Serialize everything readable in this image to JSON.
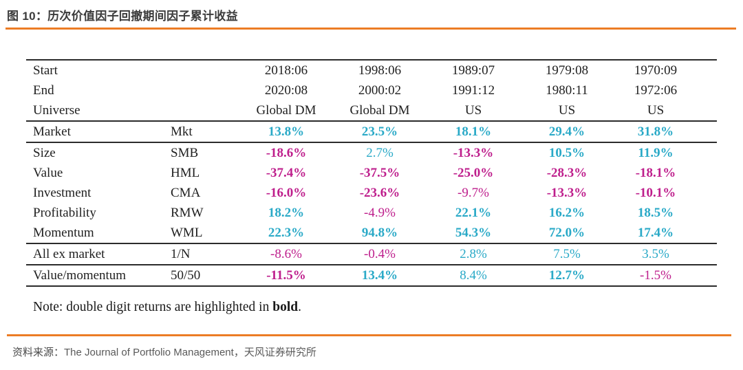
{
  "header": {
    "title": "图 10：历次价值因子回撤期间因子累计收益"
  },
  "colors": {
    "accent_orange": "#ec7c25",
    "positive_teal": "#29a9c7",
    "negative_magenta": "#be1e8c",
    "text_dark": "#1f1f1f"
  },
  "table": {
    "meta_rows": [
      {
        "label": "Start",
        "values": [
          "2018:06",
          "1998:06",
          "1989:07",
          "1979:08",
          "1970:09"
        ]
      },
      {
        "label": "End",
        "values": [
          "2020:08",
          "2000:02",
          "1991:12",
          "1980:11",
          "1972:06"
        ]
      },
      {
        "label": "Universe",
        "values": [
          "Global DM",
          "Global DM",
          "US",
          "US",
          "US"
        ]
      }
    ],
    "factor_rows": [
      {
        "name": "Market",
        "code": "Mkt",
        "sep_after": true,
        "cells": [
          {
            "t": "13.8%",
            "s": "pos",
            "b": true
          },
          {
            "t": "23.5%",
            "s": "pos",
            "b": true
          },
          {
            "t": "18.1%",
            "s": "pos",
            "b": true
          },
          {
            "t": "29.4%",
            "s": "pos",
            "b": true
          },
          {
            "t": "31.8%",
            "s": "pos",
            "b": true
          }
        ]
      },
      {
        "name": "Size",
        "code": "SMB",
        "sep_after": false,
        "cells": [
          {
            "t": "-18.6%",
            "s": "neg",
            "b": true
          },
          {
            "t": "2.7%",
            "s": "pos",
            "b": false
          },
          {
            "t": "-13.3%",
            "s": "neg",
            "b": true
          },
          {
            "t": "10.5%",
            "s": "pos",
            "b": true
          },
          {
            "t": "11.9%",
            "s": "pos",
            "b": true
          }
        ]
      },
      {
        "name": "Value",
        "code": "HML",
        "sep_after": false,
        "cells": [
          {
            "t": "-37.4%",
            "s": "neg",
            "b": true
          },
          {
            "t": "-37.5%",
            "s": "neg",
            "b": true
          },
          {
            "t": "-25.0%",
            "s": "neg",
            "b": true
          },
          {
            "t": "-28.3%",
            "s": "neg",
            "b": true
          },
          {
            "t": "-18.1%",
            "s": "neg",
            "b": true
          }
        ]
      },
      {
        "name": "Investment",
        "code": "CMA",
        "sep_after": false,
        "cells": [
          {
            "t": "-16.0%",
            "s": "neg",
            "b": true
          },
          {
            "t": "-23.6%",
            "s": "neg",
            "b": true
          },
          {
            "t": "-9.7%",
            "s": "neg",
            "b": false
          },
          {
            "t": "-13.3%",
            "s": "neg",
            "b": true
          },
          {
            "t": "-10.1%",
            "s": "neg",
            "b": true
          }
        ]
      },
      {
        "name": "Profitability",
        "code": "RMW",
        "sep_after": false,
        "cells": [
          {
            "t": "18.2%",
            "s": "pos",
            "b": true
          },
          {
            "t": "-4.9%",
            "s": "neg",
            "b": false
          },
          {
            "t": "22.1%",
            "s": "pos",
            "b": true
          },
          {
            "t": "16.2%",
            "s": "pos",
            "b": true
          },
          {
            "t": "18.5%",
            "s": "pos",
            "b": true
          }
        ]
      },
      {
        "name": "Momentum",
        "code": "WML",
        "sep_after": true,
        "cells": [
          {
            "t": "22.3%",
            "s": "pos",
            "b": true
          },
          {
            "t": "94.8%",
            "s": "pos",
            "b": true
          },
          {
            "t": "54.3%",
            "s": "pos",
            "b": true
          },
          {
            "t": "72.0%",
            "s": "pos",
            "b": true
          },
          {
            "t": "17.4%",
            "s": "pos",
            "b": true
          }
        ]
      },
      {
        "name": "All ex market",
        "code": "1/N",
        "sep_after": true,
        "cells": [
          {
            "t": "-8.6%",
            "s": "neg",
            "b": false
          },
          {
            "t": "-0.4%",
            "s": "neg",
            "b": false
          },
          {
            "t": "2.8%",
            "s": "pos",
            "b": false
          },
          {
            "t": "7.5%",
            "s": "pos",
            "b": false
          },
          {
            "t": "3.5%",
            "s": "pos",
            "b": false
          }
        ]
      },
      {
        "name": "Value/momentum",
        "code": "50/50",
        "sep_after": false,
        "cells": [
          {
            "t": "-11.5%",
            "s": "neg",
            "b": true
          },
          {
            "t": "13.4%",
            "s": "pos",
            "b": true
          },
          {
            "t": "8.4%",
            "s": "pos",
            "b": false
          },
          {
            "t": "12.7%",
            "s": "pos",
            "b": true
          },
          {
            "t": "-1.5%",
            "s": "neg",
            "b": false
          }
        ]
      }
    ]
  },
  "note": {
    "prefix": "Note: double digit returns are highlighted in ",
    "bold_word": "bold",
    "suffix": "."
  },
  "footer": {
    "label": "资料来源：",
    "text": "The Journal of Portfolio Management，天风证券研究所"
  }
}
